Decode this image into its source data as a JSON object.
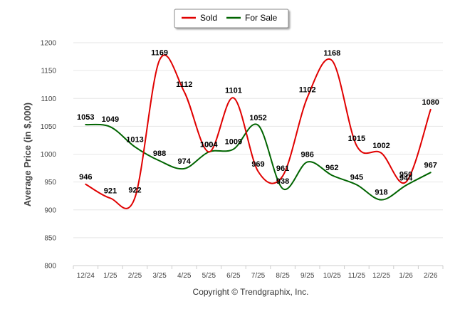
{
  "chart_data": {
    "type": "line",
    "title": "",
    "xlabel": "",
    "ylabel": "Average Price (in $,000)",
    "categories": [
      "12/24",
      "1/25",
      "2/25",
      "3/25",
      "4/25",
      "5/25",
      "6/25",
      "7/25",
      "8/25",
      "9/25",
      "10/25",
      "11/25",
      "12/25",
      "1/26",
      "2/26"
    ],
    "ylim": [
      800,
      1200
    ],
    "yticks": [
      800,
      850,
      900,
      950,
      1000,
      1050,
      1100,
      1150,
      1200
    ],
    "grid": true,
    "legend_position": "top-center",
    "series": [
      {
        "name": "Sold",
        "color": "#e00000",
        "values": [
          946,
          921,
          922,
          1169,
          1112,
          1004,
          1101,
          969,
          961,
          1102,
          1168,
          1015,
          1002,
          950,
          1080
        ]
      },
      {
        "name": "For Sale",
        "color": "#006400",
        "values": [
          1053,
          1049,
          1013,
          988,
          974,
          1004,
          1009,
          1052,
          938,
          986,
          962,
          945,
          918,
          944,
          967
        ]
      }
    ]
  },
  "footer": {
    "copyright": "Copyright © Trendgraphix, Inc."
  }
}
